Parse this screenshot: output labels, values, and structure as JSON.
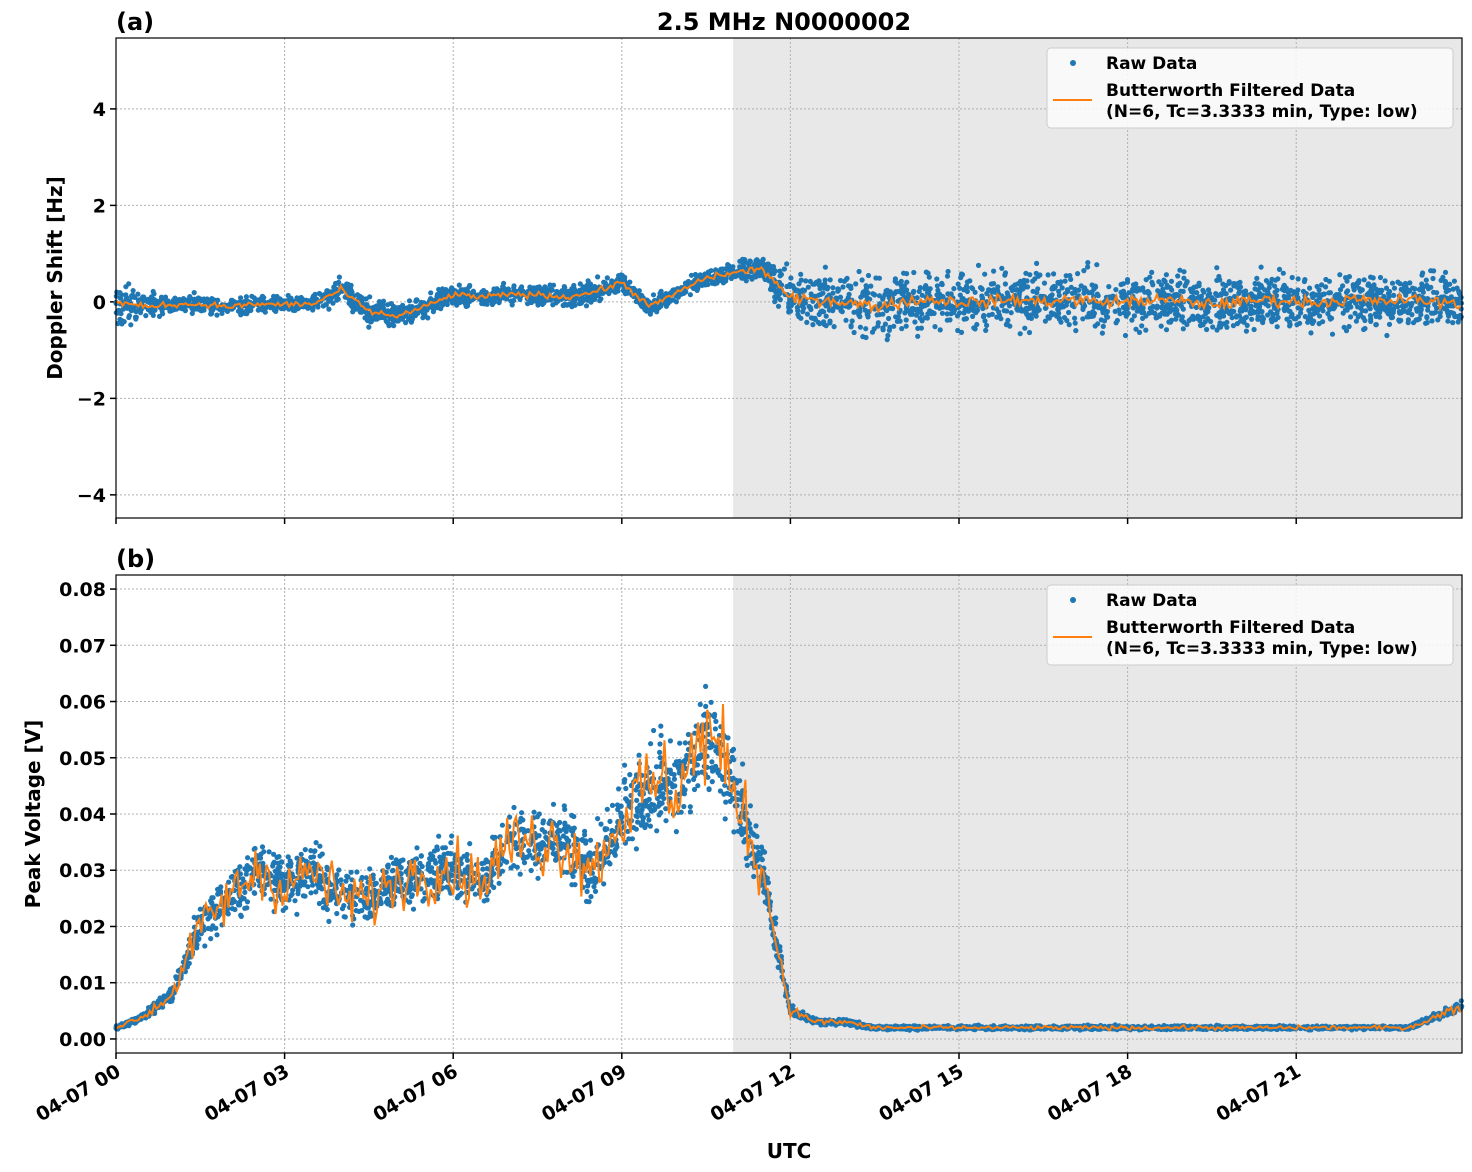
{
  "title": "2.5 MHz N0000002",
  "colors": {
    "raw": "#1f77b4",
    "filtered": "#ff7f0e",
    "shade": "#e8e8e8",
    "grid": "#b0b0b0"
  },
  "legend": {
    "raw": "Raw Data",
    "filtered_line1": "Butterworth Filtered Data",
    "filtered_line2": "(N=6, Tc=3.3333 min, Type: low)",
    "placement": "top-right"
  },
  "xlabel": "UTC",
  "x_ticks": [
    "04-07 00",
    "04-07 03",
    "04-07 06",
    "04-07 09",
    "04-07 12",
    "04-07 15",
    "04-07 18",
    "04-07 21"
  ],
  "chart_data": [
    {
      "type": "scatter",
      "panel_label": "(a)",
      "ylabel": "Doppler Shift [Hz]",
      "xlim_hours": [
        0,
        23.95
      ],
      "ylim": [
        -4.48,
        5.47
      ],
      "y_ticks": [
        -4,
        -2,
        0,
        2,
        4
      ],
      "y_tick_labels": [
        "−4",
        "−2",
        "0",
        "2",
        "4"
      ],
      "shaded_from_hours": 10.98,
      "grid": true,
      "filtered_x_hours_step": 0.5,
      "filtered": [
        0.0,
        -0.1,
        -0.05,
        -0.05,
        -0.1,
        -0.05,
        -0.05,
        -0.05,
        0.25,
        -0.2,
        -0.3,
        -0.1,
        0.15,
        0.1,
        0.15,
        0.15,
        0.1,
        0.2,
        0.4,
        -0.1,
        0.2,
        0.5,
        0.6,
        0.7,
        0.05,
        0.05,
        0.0,
        -0.1,
        0.0,
        0.05,
        0.0,
        0.0,
        0.05,
        0.0,
        0.05,
        0.0,
        0.0,
        0.05,
        0.0,
        -0.05,
        0.0,
        0.05,
        0.0,
        0.0,
        0.05,
        0.0,
        0.05,
        0.0
      ],
      "raw_spread": [
        0.8,
        0.5,
        0.3,
        0.3,
        0.3,
        0.3,
        0.3,
        0.3,
        0.4,
        0.45,
        0.45,
        0.35,
        0.35,
        0.3,
        0.3,
        0.35,
        0.35,
        0.35,
        0.35,
        0.3,
        0.3,
        0.3,
        0.35,
        0.4,
        0.9,
        1.0,
        1.0,
        1.3,
        1.0,
        1.0,
        1.0,
        1.0,
        1.0,
        1.0,
        1.0,
        1.0,
        1.0,
        1.0,
        1.0,
        1.0,
        1.0,
        1.0,
        1.0,
        1.0,
        1.0,
        1.0,
        1.0,
        1.0
      ]
    },
    {
      "type": "scatter",
      "panel_label": "(b)",
      "ylabel": "Peak Voltage [V]",
      "xlim_hours": [
        0,
        23.95
      ],
      "ylim": [
        -0.0025,
        0.0825
      ],
      "y_ticks": [
        0,
        0.01,
        0.02,
        0.03,
        0.04,
        0.05,
        0.06,
        0.07,
        0.08
      ],
      "y_tick_labels": [
        "0.00",
        "0.01",
        "0.02",
        "0.03",
        "0.04",
        "0.05",
        "0.06",
        "0.07",
        "0.08"
      ],
      "shaded_from_hours": 10.98,
      "grid": true,
      "filtered_x_hours_step": 0.5,
      "filtered": [
        0.002,
        0.004,
        0.008,
        0.02,
        0.025,
        0.03,
        0.027,
        0.03,
        0.025,
        0.025,
        0.028,
        0.03,
        0.03,
        0.028,
        0.035,
        0.035,
        0.035,
        0.03,
        0.04,
        0.045,
        0.045,
        0.055,
        0.045,
        0.03,
        0.005,
        0.003,
        0.003,
        0.002,
        0.002,
        0.002,
        0.002,
        0.002,
        0.002,
        0.002,
        0.002,
        0.002,
        0.002,
        0.002,
        0.002,
        0.002,
        0.002,
        0.002,
        0.002,
        0.002,
        0.002,
        0.002,
        0.002,
        0.004
      ]
    }
  ]
}
